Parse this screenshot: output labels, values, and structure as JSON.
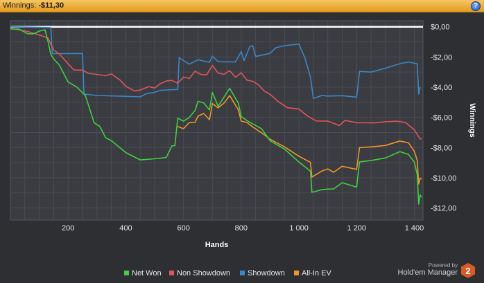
{
  "header": {
    "label": "Winnings:",
    "value": "-$11,30",
    "help_icon": "help-icon",
    "help_glyph": "?"
  },
  "chart_data": {
    "type": "line",
    "xlabel": "Hands",
    "ylabel": "Winnings",
    "xlim": [
      0,
      1430
    ],
    "ylim": [
      -12.8,
      0.4
    ],
    "x_ticks": [
      200,
      400,
      600,
      800,
      1000,
      1200,
      1400
    ],
    "x_tick_labels": [
      "200",
      "400",
      "600",
      "800",
      "1 000",
      "1 200",
      "1 400"
    ],
    "y_ticks": [
      0,
      -2,
      -4,
      -6,
      -8,
      -10,
      -12
    ],
    "y_tick_labels": [
      "$0,00",
      "-$2,00",
      "-$4,00",
      "-$6,00",
      "-$8,00",
      "-$10,00",
      "-$12,00"
    ],
    "grid": true,
    "legend_position": "bottom",
    "zero_line": 0,
    "series": [
      {
        "name": "Net Won",
        "color": "#3fd13f",
        "x": [
          0,
          30,
          60,
          80,
          100,
          120,
          130,
          140,
          150,
          170,
          200,
          230,
          250,
          260,
          290,
          310,
          330,
          350,
          400,
          450,
          500,
          540,
          560,
          570,
          580,
          600,
          620,
          640,
          650,
          670,
          690,
          700,
          720,
          740,
          760,
          790,
          800,
          820,
          840,
          870,
          900,
          950,
          1000,
          1040,
          1045,
          1080,
          1100,
          1120,
          1150,
          1200,
          1210,
          1250,
          1300,
          1350,
          1380,
          1400,
          1410,
          1415,
          1420,
          1425
        ],
        "values": [
          -0.15,
          -0.2,
          -0.4,
          -0.5,
          -0.3,
          -0.15,
          -1.0,
          -1.8,
          -2.1,
          -2.6,
          -3.6,
          -4.0,
          -4.4,
          -4.5,
          -6.4,
          -6.6,
          -7.3,
          -7.6,
          -8.3,
          -8.8,
          -8.8,
          -8.6,
          -7.9,
          -7.9,
          -6.0,
          -6.3,
          -6.0,
          -5.5,
          -5.0,
          -5.0,
          -5.5,
          -4.4,
          -5.2,
          -4.7,
          -4.1,
          -5.0,
          -6.0,
          -6.2,
          -6.4,
          -6.8,
          -7.5,
          -8.1,
          -9.0,
          -9.5,
          -11.0,
          -10.8,
          -10.7,
          -10.8,
          -10.3,
          -10.6,
          -9.0,
          -8.8,
          -8.7,
          -8.3,
          -8.4,
          -9.0,
          -9.8,
          -11.7,
          -11.2,
          -11.3
        ]
      },
      {
        "name": "Non Showdown",
        "color": "#e2555a",
        "x": [
          0,
          60,
          100,
          130,
          150,
          170,
          200,
          220,
          250,
          270,
          300,
          330,
          350,
          380,
          400,
          430,
          450,
          480,
          500,
          520,
          540,
          560,
          580,
          600,
          620,
          640,
          660,
          680,
          700,
          720,
          740,
          760,
          780,
          800,
          820,
          840,
          860,
          880,
          900,
          930,
          960,
          1000,
          1030,
          1060,
          1100,
          1140,
          1160,
          1200,
          1230,
          1260,
          1300,
          1340,
          1370,
          1400,
          1420,
          1425
        ],
        "values": [
          -0.1,
          -0.3,
          -0.5,
          -0.8,
          -1.5,
          -1.8,
          -2.5,
          -2.8,
          -2.9,
          -3.1,
          -3.1,
          -3.3,
          -3.1,
          -3.5,
          -4.0,
          -4.2,
          -4.2,
          -4.0,
          -4.0,
          -3.8,
          -3.6,
          -3.5,
          -3.8,
          -3.3,
          -3.4,
          -3.0,
          -3.1,
          -3.2,
          -2.6,
          -3.0,
          -3.2,
          -2.9,
          -3.3,
          -3.1,
          -3.5,
          -3.6,
          -3.9,
          -4.2,
          -4.5,
          -5.0,
          -5.3,
          -5.5,
          -5.9,
          -6.2,
          -6.3,
          -6.5,
          -6.2,
          -6.4,
          -6.3,
          -6.4,
          -6.3,
          -6.2,
          -6.4,
          -6.8,
          -7.4,
          -7.4
        ]
      },
      {
        "name": "Showdown",
        "color": "#3b87c9",
        "x": [
          0,
          140,
          145,
          250,
          255,
          300,
          400,
          450,
          470,
          500,
          520,
          580,
          585,
          620,
          650,
          690,
          700,
          720,
          780,
          800,
          810,
          830,
          840,
          850,
          900,
          920,
          950,
          1000,
          1020,
          1040,
          1050,
          1080,
          1100,
          1150,
          1200,
          1210,
          1250,
          1300,
          1350,
          1380,
          1400,
          1410,
          1415,
          1420
        ],
        "values": [
          0,
          0,
          -1.8,
          -1.8,
          -4.4,
          -4.6,
          -4.6,
          -4.6,
          -4.5,
          -4.3,
          -4.2,
          -4.2,
          -2.0,
          -2.5,
          -2.2,
          -2.3,
          -2.0,
          -2.3,
          -2.3,
          -1.7,
          -2.2,
          -1.3,
          -1.3,
          -1.9,
          -1.8,
          -1.4,
          -1.2,
          -1.2,
          -2.0,
          -3.3,
          -4.8,
          -4.5,
          -4.6,
          -4.6,
          -4.6,
          -3.0,
          -3.0,
          -2.7,
          -2.5,
          -2.3,
          -2.4,
          -2.5,
          -4.4,
          -4.0
        ]
      },
      {
        "name": "All-In EV",
        "color": "#f0952b",
        "x": [
          580,
          600,
          620,
          640,
          650,
          670,
          690,
          700,
          720,
          740,
          760,
          790,
          800,
          820,
          840,
          870,
          900,
          950,
          1000,
          1040,
          1045,
          1080,
          1100,
          1120,
          1150,
          1200,
          1210,
          1250,
          1300,
          1350,
          1380,
          1400,
          1410,
          1415,
          1420,
          1425
        ],
        "values": [
          -6.6,
          -6.7,
          -6.4,
          -6.3,
          -5.9,
          -5.8,
          -6.1,
          -5.1,
          -5.4,
          -5.0,
          -4.6,
          -5.5,
          -6.2,
          -6.4,
          -6.6,
          -7.0,
          -7.5,
          -7.9,
          -8.6,
          -9.0,
          -9.9,
          -9.6,
          -9.4,
          -9.6,
          -9.3,
          -9.4,
          -8.0,
          -8.0,
          -7.8,
          -7.6,
          -7.7,
          -8.2,
          -8.9,
          -10.4,
          -10.0,
          -10.1
        ]
      }
    ]
  },
  "legend": [
    "Net Won",
    "Non Showdown",
    "Showdown",
    "All-In EV"
  ],
  "branding": {
    "powered_by": "Powered by",
    "product": "Hold'em Manager",
    "logo_digit": "2"
  }
}
